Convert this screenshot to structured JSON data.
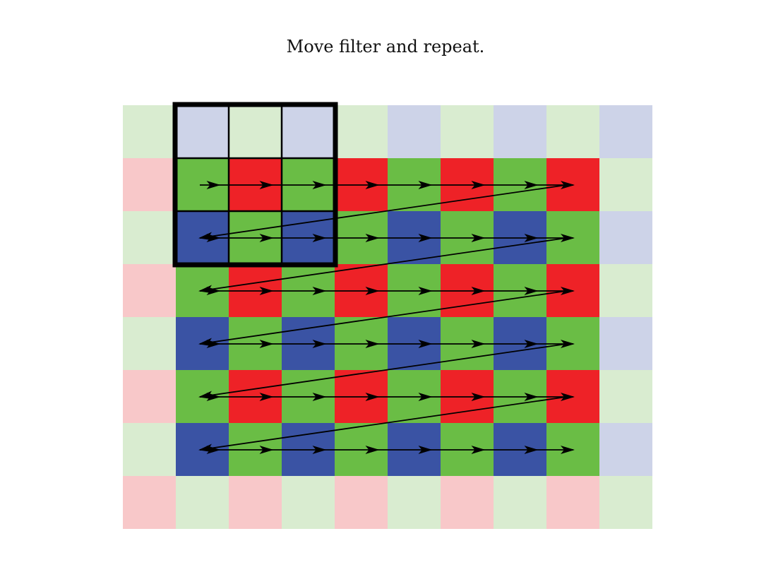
{
  "caption": "Move filter and repeat.",
  "grid": {
    "rows": 8,
    "cols": 10,
    "pattern_even_row": [
      "G",
      "B"
    ],
    "pattern_odd_row": [
      "R",
      "G"
    ]
  },
  "colors": {
    "R": "#ee2227",
    "G": "#6abd45",
    "B": "#3a53a4",
    "R_faded": "#f8c8c9",
    "G_faded": "#d9ecd0",
    "B_faded": "#cdd3e8",
    "filter_border": "#000000",
    "arrow": "#000000"
  },
  "filter": {
    "size_cells": 3,
    "start_row": 0,
    "start_col": 1
  },
  "scan_path": {
    "first_row": 1,
    "last_row": 6,
    "first_col": 1,
    "last_col": 8
  }
}
